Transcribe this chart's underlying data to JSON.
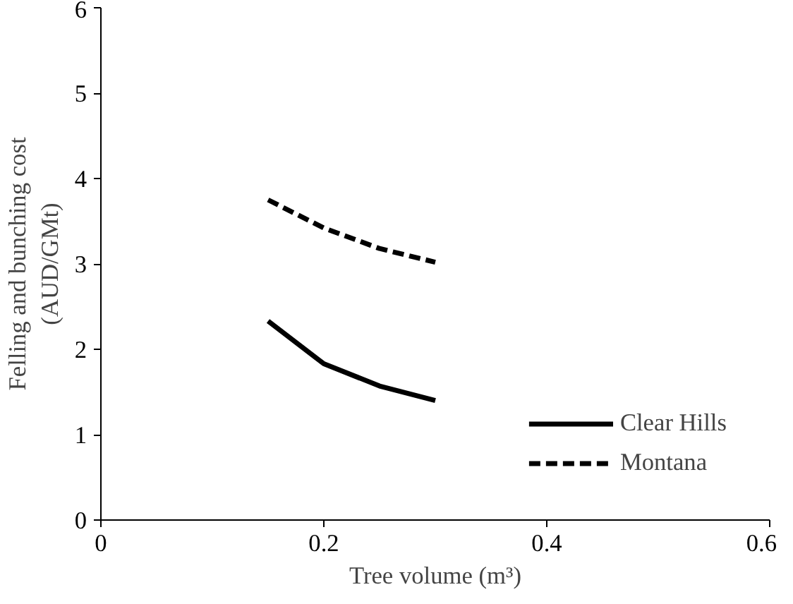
{
  "chart_data": {
    "type": "line",
    "xlabel": "Tree volume (m³)",
    "ylabel": "Felling and bunching cost\n(AUD/GMt)",
    "x": [
      0.15,
      0.2,
      0.25,
      0.3
    ],
    "series": [
      {
        "name": "Clear Hills",
        "color": "#000000",
        "line_style": "solid",
        "values": [
          2.33,
          1.83,
          1.57,
          1.4
        ]
      },
      {
        "name": "Montana",
        "color": "#000000",
        "line_style": "dashed",
        "values": [
          3.75,
          3.42,
          3.18,
          3.02
        ]
      }
    ],
    "xlim": [
      0,
      0.6
    ],
    "ylim": [
      0,
      6
    ],
    "xticks": [
      0,
      {
        "value": 0.2,
        "label": "0.2"
      },
      {
        "value": 0.4,
        "label": "0.4"
      },
      {
        "value": 0.6,
        "label": "0.6"
      }
    ],
    "yticks": [
      0,
      1,
      2,
      3,
      4,
      5,
      6
    ],
    "grid": false,
    "legend": "bottom right",
    "marker": "none"
  }
}
